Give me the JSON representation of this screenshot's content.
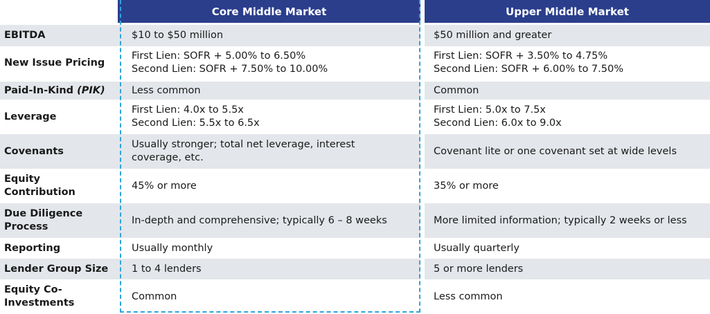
{
  "columns": {
    "core": "Core Middle Market",
    "upper": "Upper Middle Market"
  },
  "rows": [
    {
      "label": "EBITDA",
      "core": [
        "$10 to $50 million"
      ],
      "upper": [
        "$50 million and greater"
      ]
    },
    {
      "label": "New Issue Pricing",
      "core": [
        "First Lien: SOFR + 5.00% to 6.50%",
        "Second Lien: SOFR + 7.50% to 10.00%"
      ],
      "upper": [
        "First Lien: SOFR + 3.50% to 4.75%",
        "Second Lien: SOFR + 6.00% to 7.50%"
      ]
    },
    {
      "label": "Paid-In-Kind",
      "label_italic": "(PIK)",
      "core": [
        "Less common"
      ],
      "upper": [
        "Common"
      ]
    },
    {
      "label": "Leverage",
      "core": [
        "First Lien: 4.0x to 5.5x",
        "Second Lien: 5.5x to 6.5x"
      ],
      "upper": [
        "First Lien: 5.0x to 7.5x",
        "Second Lien: 6.0x to 9.0x"
      ]
    },
    {
      "label": "Covenants",
      "core": [
        "Usually stronger; total net leverage, interest",
        "coverage, etc."
      ],
      "upper": [
        "Covenant lite or one covenant set at wide levels"
      ]
    },
    {
      "label": "Equity",
      "label2": "Contribution",
      "core": [
        "45% or more"
      ],
      "upper": [
        "35% or more"
      ]
    },
    {
      "label": "Due Diligence",
      "label2": "Process",
      "core": [
        "In-depth and comprehensive; typically 6 – 8 weeks"
      ],
      "upper": [
        "More limited information; typically 2 weeks or less"
      ]
    },
    {
      "label": "Reporting",
      "core": [
        "Usually monthly"
      ],
      "upper": [
        "Usually quarterly"
      ]
    },
    {
      "label": "Lender Group Size",
      "core": [
        "1 to 4 lenders"
      ],
      "upper": [
        "5 or more lenders"
      ]
    },
    {
      "label": "Equity Co-",
      "label2": "Investments",
      "core": [
        "Common"
      ],
      "upper": [
        "Less common"
      ]
    }
  ],
  "colors": {
    "header_bg": "#2b3e8c",
    "row_alt_bg": "#e3e6ea",
    "dashed_border": "#2ea3dc"
  }
}
